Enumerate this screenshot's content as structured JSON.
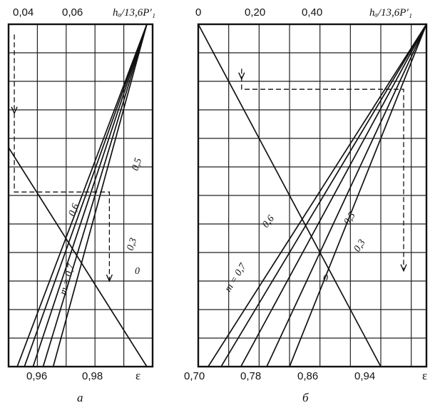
{
  "chart_data": [
    {
      "type": "line",
      "panel_label": "а",
      "xlabel": "ε",
      "top_axis_label": "hₐ/13,6P′₁",
      "xlim": [
        0.95,
        1.0
      ],
      "x_ticks": [
        0.96,
        0.98
      ],
      "top_ticks": [
        "0,04",
        "0,06"
      ],
      "x_tick_labels": [
        "0,96",
        "0,98"
      ],
      "grid": true,
      "series": [
        {
          "name": "m = 0,7",
          "x": [
            0.953,
            0.998
          ],
          "y": [
            0.0,
            1.0
          ]
        },
        {
          "name": "0,6",
          "x": [
            0.9555,
            0.998
          ],
          "y": [
            0.0,
            1.0
          ]
        },
        {
          "name": "0,5",
          "x": [
            0.9585,
            0.998
          ],
          "y": [
            0.0,
            1.0
          ]
        },
        {
          "name": "0,3",
          "x": [
            0.962,
            0.998
          ],
          "y": [
            0.0,
            1.0
          ]
        },
        {
          "name": "0",
          "x": [
            0.9655,
            0.998
          ],
          "y": [
            0.0,
            1.0
          ]
        },
        {
          "x": [
            0.95,
            0.998
          ],
          "y": [
            0.64,
            0.0
          ]
        }
      ],
      "example_path": {
        "x": [
          0.952,
          0.952,
          0.985,
          0.985
        ],
        "y": [
          0.97,
          0.51,
          0.51,
          0.25
        ]
      }
    },
    {
      "type": "line",
      "panel_label": "б",
      "xlabel": "ε",
      "top_axis_label": "hₐ/13,6P′₁",
      "xlim": [
        0.7,
        1.0
      ],
      "x_ticks": [
        0.7,
        0.78,
        0.86,
        0.94
      ],
      "top_ticks": [
        "0",
        "0,20",
        "0,40"
      ],
      "x_tick_labels": [
        "0,70",
        "0,78",
        "0,86",
        "0,94"
      ],
      "grid": true,
      "series": [
        {
          "name": "m = 0,7",
          "x": [
            0.713,
            1.0
          ],
          "y": [
            0.0,
            1.0
          ]
        },
        {
          "name": "0,6",
          "x": [
            0.73,
            1.0
          ],
          "y": [
            0.0,
            1.0
          ]
        },
        {
          "name": "0,5",
          "x": [
            0.756,
            1.0
          ],
          "y": [
            0.0,
            1.0
          ]
        },
        {
          "name": "0,3",
          "x": [
            0.79,
            1.0
          ],
          "y": [
            0.0,
            1.0
          ]
        },
        {
          "name": "0",
          "x": [
            0.82,
            1.0
          ],
          "y": [
            0.0,
            1.0
          ]
        },
        {
          "x": [
            0.7,
            0.94
          ],
          "y": [
            1.0,
            0.0
          ]
        }
      ],
      "example_path": {
        "x": [
          0.757,
          0.757,
          0.97,
          0.97
        ],
        "y": [
          0.87,
          0.81,
          0.81,
          0.28
        ]
      }
    }
  ],
  "labels": {
    "a": {
      "top_ticks": [
        "0,04",
        "0,06"
      ],
      "top_axis": "hₐ/13,6P′₁",
      "bottom_ticks": [
        "0,96",
        "0,98"
      ],
      "eps": "ε",
      "panel": "а",
      "m07": "m = 0,7",
      "m06": "0,6",
      "m05": "0,5",
      "m03": "0,3",
      "m0": "0"
    },
    "b": {
      "top_ticks": [
        "0",
        "0,20",
        "0,40"
      ],
      "top_axis": "hₐ/13,6P′₁",
      "bottom_ticks": [
        "0,70",
        "0,78",
        "0,86",
        "0,94"
      ],
      "eps": "ε",
      "panel": "б",
      "m07": "m = 0,7",
      "m06": "0,6",
      "m05": "0,5",
      "m03": "0,3",
      "m0": "0"
    }
  }
}
